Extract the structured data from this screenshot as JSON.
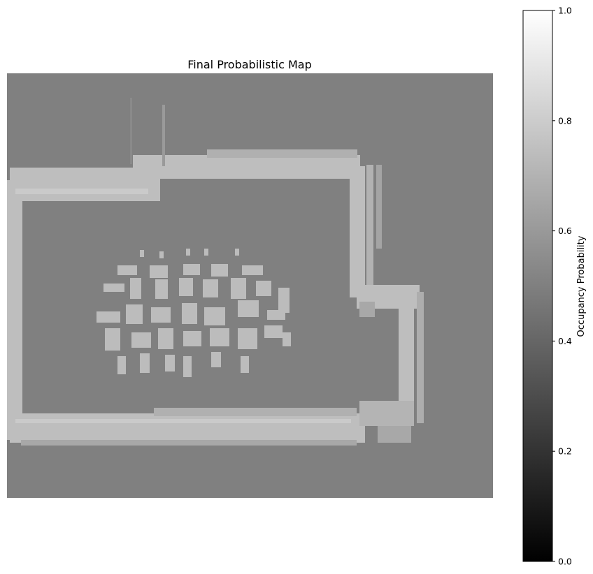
{
  "chart_data": {
    "type": "heatmap",
    "title": "Final Probabilistic Map",
    "colormap": "gray",
    "background_value": 0.5,
    "grid": false,
    "colorbar": {
      "label": "Occupancy Probability",
      "range": [
        0,
        1
      ],
      "ticks": [
        "0.0",
        "0.2",
        "0.4",
        "0.6",
        "0.8",
        "1.0"
      ],
      "position": "right"
    },
    "occupied_value": 0.75,
    "regions": [
      {
        "value": 0.75,
        "label": "outer wall"
      },
      {
        "value": 0.75,
        "label": "central obstacle cluster"
      }
    ]
  }
}
